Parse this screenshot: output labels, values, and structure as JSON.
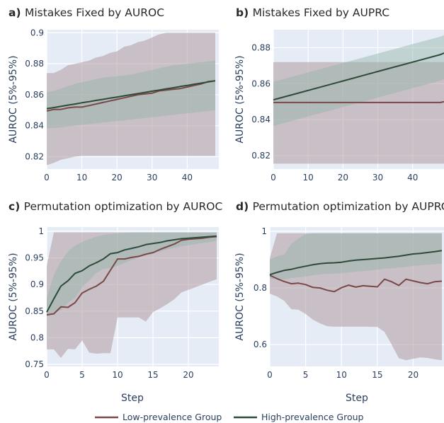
{
  "figure": {
    "xlabel": "Step",
    "legend": {
      "placement": "bottom",
      "items": [
        {
          "label": "Low-prevalence Group",
          "color": "#7a4848"
        },
        {
          "label": "High-prevalence Group",
          "color": "#2d4a3a"
        }
      ]
    }
  },
  "colors": {
    "plot_bg": "#e5ecf6",
    "grid": "#ffffff",
    "low_line": "#7a4848",
    "high_line": "#2d4a3a",
    "low_band": "#b39a9f",
    "high_band": "#93b3a6"
  },
  "chart_data": [
    {
      "id": "a",
      "type": "line",
      "title_letter": "a)",
      "title": "Mistakes Fixed by AUROC",
      "ylabel": "AUROC (5%-95%)",
      "xlim": [
        0,
        49
      ],
      "ylim": [
        0.812,
        0.902
      ],
      "xticks": [
        0,
        10,
        20,
        30,
        40
      ],
      "yticks": [
        0.82,
        0.84,
        0.86,
        0.88,
        0.9
      ],
      "ytick_labels": [
        "0.82",
        "0.84",
        "0.86",
        "0.88",
        "0.9"
      ],
      "grid": true,
      "x": [
        0,
        2,
        4,
        6,
        8,
        10,
        12,
        14,
        16,
        18,
        20,
        22,
        24,
        26,
        28,
        30,
        32,
        34,
        36,
        38,
        40,
        42,
        44,
        46,
        48
      ],
      "series": [
        {
          "name": "Low-prevalence Group",
          "values": [
            0.8495,
            0.8505,
            0.8505,
            0.8515,
            0.852,
            0.852,
            0.853,
            0.854,
            0.855,
            0.856,
            0.857,
            0.858,
            0.859,
            0.86,
            0.8605,
            0.861,
            0.8625,
            0.863,
            0.8635,
            0.864,
            0.865,
            0.866,
            0.867,
            0.8685,
            0.869
          ],
          "lower": [
            0.8145,
            0.816,
            0.818,
            0.819,
            0.82,
            0.8205,
            0.8205,
            0.8205,
            0.8205,
            0.8205,
            0.8205,
            0.8205,
            0.8205,
            0.8205,
            0.8205,
            0.8205,
            0.8205,
            0.8205,
            0.8205,
            0.8205,
            0.8205,
            0.8205,
            0.8205,
            0.8205,
            0.8205
          ],
          "upper": [
            0.874,
            0.874,
            0.876,
            0.879,
            0.88,
            0.881,
            0.882,
            0.884,
            0.885,
            0.887,
            0.888,
            0.891,
            0.892,
            0.894,
            0.895,
            0.897,
            0.899,
            0.9,
            0.9,
            0.9,
            0.9,
            0.9,
            0.9,
            0.9,
            0.9
          ]
        },
        {
          "name": "High-prevalence Group",
          "values": [
            0.851,
            0.8517,
            0.8525,
            0.8533,
            0.854,
            0.8548,
            0.8555,
            0.8563,
            0.857,
            0.8578,
            0.8585,
            0.8593,
            0.86,
            0.8608,
            0.8615,
            0.8623,
            0.863,
            0.8638,
            0.8645,
            0.8653,
            0.866,
            0.8668,
            0.8675,
            0.8683,
            0.869
          ],
          "lower": [
            0.8385,
            0.8385,
            0.839,
            0.8395,
            0.84,
            0.8405,
            0.841,
            0.8415,
            0.842,
            0.8425,
            0.843,
            0.8435,
            0.844,
            0.8445,
            0.845,
            0.8455,
            0.846,
            0.8465,
            0.847,
            0.8475,
            0.848,
            0.8485,
            0.849,
            0.8495,
            0.85
          ],
          "upper": [
            0.8615,
            0.8625,
            0.864,
            0.8655,
            0.867,
            0.868,
            0.869,
            0.87,
            0.871,
            0.8715,
            0.872,
            0.8725,
            0.873,
            0.874,
            0.875,
            0.876,
            0.877,
            0.878,
            0.879,
            0.8795,
            0.88,
            0.8805,
            0.881,
            0.8815,
            0.882
          ]
        }
      ]
    },
    {
      "id": "b",
      "type": "line",
      "title_letter": "b)",
      "title": "Mistakes Fixed by AUPRC",
      "ylabel": "AUROC (5%-95%)",
      "xlim": [
        0,
        49
      ],
      "ylim": [
        0.8125,
        0.89
      ],
      "xticks": [
        0,
        10,
        20,
        30,
        40
      ],
      "yticks": [
        0.82,
        0.84,
        0.86,
        0.88
      ],
      "ytick_labels": [
        "0.82",
        "0.84",
        "0.86",
        "0.88"
      ],
      "grid": true,
      "x": [
        0,
        8,
        16,
        24,
        32,
        40,
        48,
        49
      ],
      "series": [
        {
          "name": "Low-prevalence Group",
          "values": [
            0.8495,
            0.8495,
            0.8495,
            0.8495,
            0.8495,
            0.8495,
            0.8495,
            0.85
          ],
          "lower": [
            0.8155,
            0.8155,
            0.8155,
            0.8155,
            0.8155,
            0.8155,
            0.8155,
            0.8155
          ],
          "upper": [
            0.872,
            0.872,
            0.872,
            0.872,
            0.872,
            0.872,
            0.872,
            0.872
          ]
        },
        {
          "name": "High-prevalence Group",
          "values": [
            0.851,
            0.8552,
            0.8594,
            0.8636,
            0.8678,
            0.872,
            0.8762,
            0.877
          ],
          "lower": [
            0.8365,
            0.8407,
            0.8449,
            0.8491,
            0.8533,
            0.8575,
            0.8617,
            0.8625
          ],
          "upper": [
            0.861,
            0.8652,
            0.8694,
            0.8736,
            0.8778,
            0.882,
            0.8862,
            0.887
          ]
        }
      ]
    },
    {
      "id": "c",
      "type": "line",
      "title_letter": "c)",
      "title": "Permutation optimization by AUROC",
      "ylabel": "AUROC (5%-95%)",
      "xlim": [
        0,
        24.3
      ],
      "ylim": [
        0.746,
        1.008
      ],
      "xticks": [
        0,
        5,
        10,
        15,
        20
      ],
      "yticks": [
        0.75,
        0.8,
        0.85,
        0.9,
        0.95,
        1
      ],
      "ytick_labels": [
        "0.75",
        "0.8",
        "0.85",
        "0.9",
        "0.95",
        "1"
      ],
      "grid": true,
      "x": [
        0,
        1,
        2,
        3,
        4,
        5,
        6,
        7,
        8,
        9,
        10,
        11,
        12,
        13,
        14,
        15,
        16,
        17,
        18,
        19,
        20,
        21,
        22,
        23,
        24
      ],
      "series": [
        {
          "name": "Low-prevalence Group",
          "values": [
            0.843,
            0.845,
            0.858,
            0.857,
            0.866,
            0.884,
            0.891,
            0.897,
            0.906,
            0.927,
            0.948,
            0.948,
            0.951,
            0.953,
            0.957,
            0.96,
            0.966,
            0.971,
            0.976,
            0.983,
            0.985,
            0.986,
            0.987,
            0.989,
            0.99
          ],
          "lower": [
            0.778,
            0.778,
            0.762,
            0.779,
            0.778,
            0.795,
            0.772,
            0.77,
            0.771,
            0.771,
            0.838,
            0.838,
            0.838,
            0.838,
            0.83,
            0.848,
            0.855,
            0.863,
            0.872,
            0.885,
            0.89,
            0.895,
            0.9,
            0.905,
            0.91
          ],
          "upper": [
            0.935,
            0.998,
            0.998,
            0.998,
            0.998,
            0.998,
            0.998,
            0.998,
            0.998,
            0.998,
            0.998,
            0.998,
            0.998,
            0.998,
            0.998,
            0.998,
            0.998,
            0.998,
            0.998,
            0.998,
            0.998,
            0.998,
            0.998,
            0.998,
            0.998
          ]
        },
        {
          "name": "High-prevalence Group",
          "values": [
            0.848,
            0.873,
            0.897,
            0.907,
            0.921,
            0.926,
            0.935,
            0.941,
            0.948,
            0.958,
            0.96,
            0.965,
            0.968,
            0.971,
            0.975,
            0.977,
            0.979,
            0.982,
            0.984,
            0.986,
            0.987,
            0.988,
            0.989,
            0.99,
            0.991
          ],
          "lower": [
            0.84,
            0.848,
            0.851,
            0.866,
            0.875,
            0.895,
            0.908,
            0.922,
            0.929,
            0.931,
            0.935,
            0.941,
            0.946,
            0.951,
            0.955,
            0.958,
            0.962,
            0.966,
            0.969,
            0.972,
            0.974,
            0.976,
            0.978,
            0.98,
            0.982
          ],
          "upper": [
            0.875,
            0.918,
            0.944,
            0.962,
            0.973,
            0.98,
            0.985,
            0.99,
            0.993,
            0.995,
            0.996,
            0.997,
            0.998,
            0.998,
            0.998,
            0.998,
            0.998,
            0.998,
            0.998,
            0.998,
            0.998,
            0.998,
            0.998,
            0.998,
            0.998
          ]
        }
      ]
    },
    {
      "id": "d",
      "type": "line",
      "title_letter": "d)",
      "title": "Permutation optimization by AUPRC",
      "ylabel": "AUROC (5%-95%)",
      "xlim": [
        0,
        24.3
      ],
      "ylim": [
        0.523,
        1.015
      ],
      "xticks": [
        0,
        5,
        10,
        15,
        20
      ],
      "yticks": [
        0.6,
        0.8,
        1
      ],
      "ytick_labels": [
        "0.6",
        "0.8",
        "1"
      ],
      "grid": true,
      "x": [
        0,
        1,
        2,
        3,
        4,
        5,
        6,
        7,
        8,
        9,
        10,
        11,
        12,
        13,
        14,
        15,
        16,
        17,
        18,
        19,
        20,
        21,
        22,
        23,
        24
      ],
      "series": [
        {
          "name": "Low-prevalence Group",
          "values": [
            0.845,
            0.833,
            0.823,
            0.815,
            0.817,
            0.812,
            0.802,
            0.8,
            0.792,
            0.787,
            0.801,
            0.81,
            0.803,
            0.808,
            0.806,
            0.804,
            0.831,
            0.822,
            0.809,
            0.831,
            0.825,
            0.819,
            0.815,
            0.822,
            0.824
          ],
          "lower": [
            0.78,
            0.77,
            0.755,
            0.725,
            0.723,
            0.708,
            0.688,
            0.675,
            0.665,
            0.663,
            0.663,
            0.663,
            0.663,
            0.663,
            0.663,
            0.662,
            0.645,
            0.6,
            0.552,
            0.545,
            0.55,
            0.555,
            0.553,
            0.548,
            0.545
          ],
          "upper": [
            0.905,
            0.993,
            0.993,
            0.993,
            0.993,
            0.993,
            0.993,
            0.993,
            0.993,
            0.993,
            0.993,
            0.993,
            0.993,
            0.993,
            0.993,
            0.993,
            0.993,
            0.993,
            0.993,
            0.993,
            0.993,
            0.993,
            0.993,
            0.993,
            0.993
          ]
        },
        {
          "name": "High-prevalence Group",
          "values": [
            0.847,
            0.855,
            0.862,
            0.866,
            0.872,
            0.877,
            0.882,
            0.886,
            0.888,
            0.889,
            0.891,
            0.895,
            0.898,
            0.9,
            0.902,
            0.904,
            0.906,
            0.909,
            0.912,
            0.916,
            0.92,
            0.922,
            0.925,
            0.928,
            0.932
          ],
          "lower": [
            0.833,
            0.832,
            0.83,
            0.835,
            0.838,
            0.84,
            0.845,
            0.848,
            0.85,
            0.851,
            0.852,
            0.855,
            0.858,
            0.86,
            0.862,
            0.865,
            0.868,
            0.87,
            0.872,
            0.875,
            0.878,
            0.88,
            0.882,
            0.884,
            0.886
          ],
          "upper": [
            0.9,
            0.912,
            0.918,
            0.955,
            0.975,
            0.99,
            0.993,
            0.993,
            0.993,
            0.993,
            0.993,
            0.993,
            0.993,
            0.993,
            0.993,
            0.993,
            0.993,
            0.993,
            0.993,
            0.993,
            0.993,
            0.993,
            0.993,
            0.993,
            0.993
          ]
        }
      ]
    }
  ]
}
